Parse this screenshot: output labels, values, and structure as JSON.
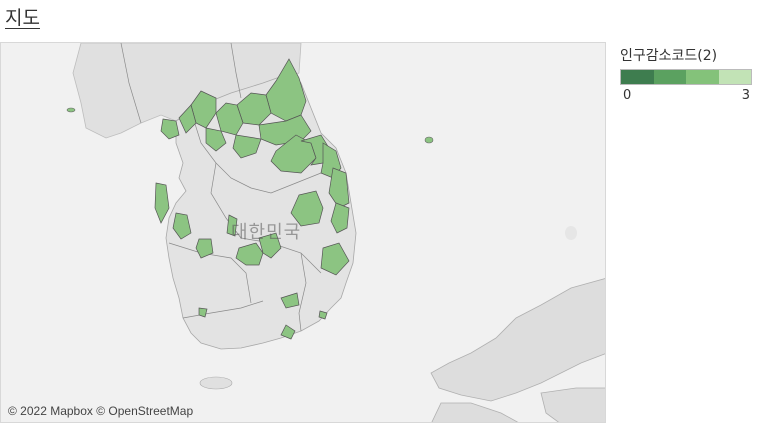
{
  "title": "지도",
  "map": {
    "country_label": "대한민국",
    "attribution": "© 2022 Mapbox © OpenStreetMap",
    "land_color": "#e2e2e2",
    "sea_color": "#f1f1f1",
    "border_color": "#888888",
    "highlight_color": "#8cc482"
  },
  "legend": {
    "title": "인구감소코드(2)",
    "min_label": "0",
    "max_label": "3",
    "colors": [
      "#3e7d4f",
      "#5ba160",
      "#84c27a",
      "#c2e3b6"
    ]
  }
}
